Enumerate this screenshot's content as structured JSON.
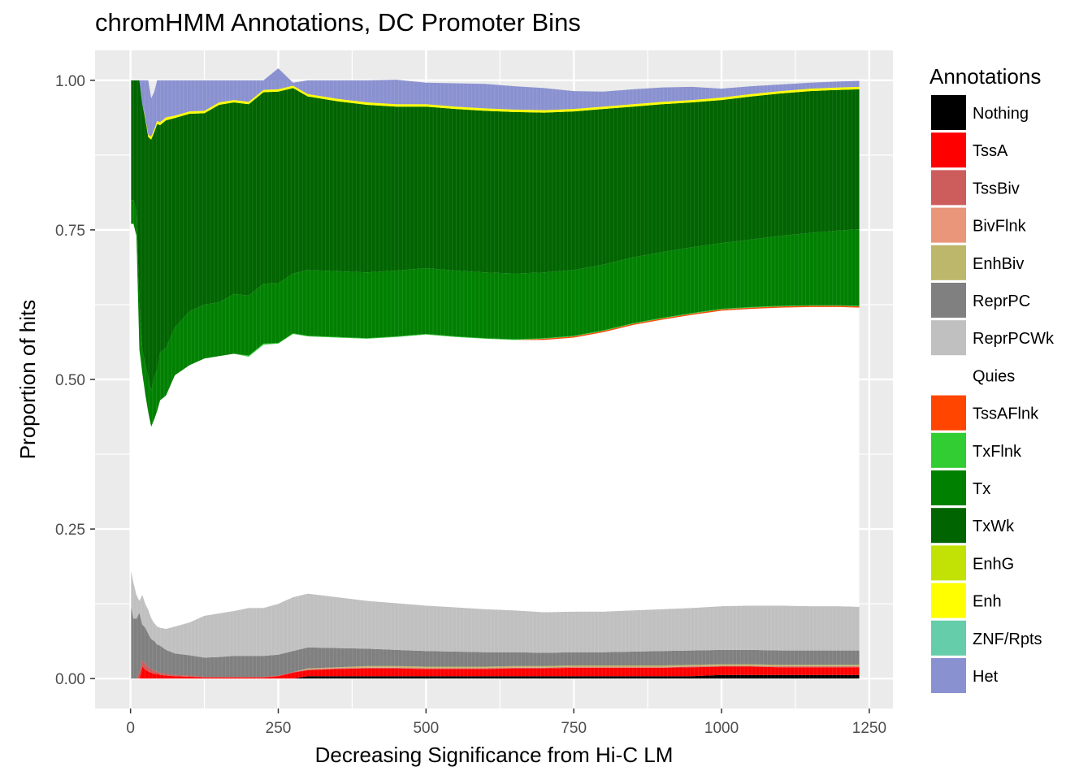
{
  "chart_data": {
    "type": "area",
    "stacked": "proportion",
    "title": "chromHMM Annotations, DC Promoter Bins",
    "xlabel": "Decreasing Significance from Hi-C LM",
    "ylabel": "Proportion of hits",
    "xlim": [
      -60,
      1290
    ],
    "ylim": [
      -0.05,
      1.05
    ],
    "x_ticks": [
      0,
      250,
      500,
      750,
      1000,
      1250
    ],
    "x_tick_labels": [
      "0",
      "250",
      "500",
      "750",
      "1000",
      "1250"
    ],
    "y_ticks": [
      0,
      0.25,
      0.5,
      0.75,
      1
    ],
    "y_tick_labels": [
      "0.00",
      "0.25",
      "0.50",
      "0.75",
      "1.00"
    ],
    "grid": true,
    "legend_position": "right",
    "legend_title": "Annotations",
    "x": [
      1,
      5,
      10,
      15,
      20,
      25,
      30,
      35,
      40,
      45,
      50,
      60,
      75,
      100,
      125,
      150,
      175,
      200,
      225,
      250,
      275,
      300,
      350,
      400,
      450,
      500,
      550,
      600,
      650,
      700,
      750,
      800,
      850,
      900,
      950,
      1000,
      1050,
      1100,
      1150,
      1200,
      1233
    ],
    "series": [
      {
        "name": "Nothing",
        "color": "#000000",
        "values": [
          0,
          0,
          0,
          0,
          0,
          0,
          0,
          0,
          0,
          0,
          0,
          0,
          0,
          0,
          0,
          0,
          0,
          0,
          0,
          0,
          0,
          0.004,
          0.004,
          0.004,
          0.004,
          0.004,
          0.004,
          0.004,
          0.004,
          0.004,
          0.004,
          0.004,
          0.004,
          0.004,
          0.004,
          0.006,
          0.006,
          0.006,
          0.006,
          0.006,
          0.006
        ]
      },
      {
        "name": "TssA",
        "color": "#ff0000",
        "values": [
          0,
          0,
          0,
          0,
          0.02,
          0.015,
          0.012,
          0.01,
          0.008,
          0.008,
          0.006,
          0.005,
          0.004,
          0.003,
          0.002,
          0.002,
          0.002,
          0.002,
          0.002,
          0.004,
          0.01,
          0.01,
          0.012,
          0.013,
          0.013,
          0.012,
          0.012,
          0.012,
          0.013,
          0.013,
          0.014,
          0.014,
          0.014,
          0.014,
          0.015,
          0.014,
          0.014,
          0.013,
          0.013,
          0.013,
          0.013
        ]
      },
      {
        "name": "TssBiv",
        "color": "#cd5c5c",
        "values": [
          0,
          0,
          0,
          0.01,
          0.01,
          0.01,
          0.008,
          0.006,
          0.005,
          0.004,
          0.004,
          0.003,
          0.002,
          0.002,
          0.001,
          0.001,
          0.001,
          0.001,
          0.001,
          0.001,
          0.001,
          0.001,
          0.001,
          0.001,
          0.001,
          0.001,
          0.001,
          0.001,
          0.001,
          0.001,
          0.001,
          0.001,
          0.001,
          0.001,
          0.001,
          0.001,
          0.001,
          0.001,
          0.001,
          0.001,
          0.001
        ]
      },
      {
        "name": "BivFlnk",
        "color": "#e9967a",
        "values": [
          0,
          0,
          0,
          0,
          0,
          0,
          0,
          0,
          0,
          0,
          0,
          0,
          0,
          0,
          0,
          0,
          0,
          0,
          0,
          0,
          0,
          0.001,
          0.001,
          0.001,
          0.001,
          0.001,
          0.001,
          0.001,
          0.001,
          0.001,
          0.001,
          0.001,
          0.001,
          0.001,
          0.001,
          0.001,
          0.001,
          0.001,
          0.001,
          0.001,
          0.001
        ]
      },
      {
        "name": "EnhBiv",
        "color": "#bdb76b",
        "values": [
          0,
          0,
          0,
          0,
          0,
          0,
          0,
          0,
          0,
          0,
          0,
          0,
          0,
          0,
          0,
          0,
          0,
          0,
          0,
          0,
          0,
          0.001,
          0.001,
          0.002,
          0.002,
          0.002,
          0.002,
          0.002,
          0.002,
          0.002,
          0.002,
          0.002,
          0.002,
          0.002,
          0.002,
          0.002,
          0.002,
          0.002,
          0.002,
          0.002,
          0.002
        ]
      },
      {
        "name": "ReprPC",
        "color": "#808080",
        "values": [
          0.12,
          0.1,
          0.1,
          0.1,
          0.06,
          0.06,
          0.055,
          0.05,
          0.05,
          0.045,
          0.045,
          0.04,
          0.036,
          0.034,
          0.032,
          0.033,
          0.035,
          0.035,
          0.035,
          0.035,
          0.035,
          0.035,
          0.032,
          0.029,
          0.027,
          0.026,
          0.025,
          0.024,
          0.023,
          0.022,
          0.022,
          0.022,
          0.023,
          0.024,
          0.024,
          0.024,
          0.024,
          0.024,
          0.024,
          0.024,
          0.024
        ]
      },
      {
        "name": "ReprPCWk",
        "color": "#c0c0c0",
        "values": [
          0.06,
          0.06,
          0.04,
          0.02,
          0.05,
          0.04,
          0.04,
          0.035,
          0.03,
          0.03,
          0.03,
          0.035,
          0.045,
          0.055,
          0.07,
          0.073,
          0.075,
          0.08,
          0.08,
          0.085,
          0.09,
          0.09,
          0.085,
          0.08,
          0.078,
          0.076,
          0.074,
          0.072,
          0.07,
          0.068,
          0.068,
          0.068,
          0.069,
          0.07,
          0.071,
          0.073,
          0.074,
          0.075,
          0.074,
          0.074,
          0.073
        ]
      },
      {
        "name": "Quies",
        "color": "#ffffff",
        "values": [
          0.58,
          0.6,
          0.6,
          0.42,
          0.37,
          0.35,
          0.33,
          0.32,
          0.34,
          0.36,
          0.38,
          0.39,
          0.42,
          0.43,
          0.43,
          0.43,
          0.43,
          0.42,
          0.44,
          0.435,
          0.44,
          0.43,
          0.434,
          0.438,
          0.445,
          0.453,
          0.452,
          0.452,
          0.452,
          0.455,
          0.458,
          0.467,
          0.477,
          0.484,
          0.49,
          0.494,
          0.496,
          0.498,
          0.5,
          0.5,
          0.5
        ]
      },
      {
        "name": "TssAFlnk",
        "color": "#ff4500",
        "values": [
          0,
          0,
          0,
          0,
          0,
          0,
          0,
          0,
          0,
          0,
          0,
          0,
          0,
          0,
          0,
          0,
          0,
          0,
          0,
          0,
          0,
          0,
          0,
          0,
          0,
          0,
          0,
          0,
          0,
          0.002,
          0.002,
          0.002,
          0.002,
          0.002,
          0.002,
          0.002,
          0.002,
          0.002,
          0.002,
          0.002,
          0.002
        ]
      },
      {
        "name": "TxFlnk",
        "color": "#32cd32",
        "values": [
          0,
          0,
          0,
          0,
          0,
          0,
          0,
          0,
          0,
          0,
          0,
          0,
          0,
          0,
          0,
          0,
          0,
          0.002,
          0.002,
          0.001,
          0.001,
          0.001,
          0.001,
          0.001,
          0.001,
          0.001,
          0.001,
          0.001,
          0.001,
          0.001,
          0.001,
          0.001,
          0.001,
          0.001,
          0.001,
          0.001,
          0.001,
          0.001,
          0.001,
          0.001,
          0.001
        ]
      },
      {
        "name": "Tx",
        "color": "#008000",
        "values": [
          0.04,
          0.04,
          0.04,
          0.08,
          0.04,
          0.05,
          0.06,
          0.06,
          0.07,
          0.07,
          0.08,
          0.08,
          0.08,
          0.09,
          0.09,
          0.09,
          0.1,
          0.1,
          0.1,
          0.1,
          0.1,
          0.11,
          0.11,
          0.11,
          0.11,
          0.11,
          0.11,
          0.11,
          0.11,
          0.11,
          0.11,
          0.11,
          0.11,
          0.11,
          0.11,
          0.11,
          0.113,
          0.117,
          0.121,
          0.125,
          0.128
        ]
      },
      {
        "name": "TxWk",
        "color": "#006400",
        "values": [
          0.2,
          0.2,
          0.22,
          0.37,
          0.41,
          0.41,
          0.4,
          0.42,
          0.41,
          0.41,
          0.38,
          0.38,
          0.35,
          0.33,
          0.32,
          0.33,
          0.32,
          0.32,
          0.32,
          0.32,
          0.31,
          0.29,
          0.284,
          0.28,
          0.274,
          0.27,
          0.27,
          0.27,
          0.27,
          0.267,
          0.265,
          0.26,
          0.252,
          0.247,
          0.242,
          0.239,
          0.239,
          0.238,
          0.237,
          0.235,
          0.234
        ]
      },
      {
        "name": "EnhG",
        "color": "#c2e105",
        "values": [
          0,
          0,
          0,
          0,
          0,
          0,
          0,
          0,
          0,
          0,
          0,
          0,
          0,
          0,
          0,
          0,
          0,
          0,
          0,
          0,
          0,
          0,
          0,
          0,
          0,
          0,
          0,
          0,
          0,
          0,
          0,
          0,
          0,
          0,
          0,
          0,
          0,
          0,
          0,
          0,
          0
        ]
      },
      {
        "name": "Enh",
        "color": "#ffff00",
        "values": [
          0,
          0,
          0,
          0,
          0,
          0.003,
          0.004,
          0.005,
          0.005,
          0.005,
          0.005,
          0.005,
          0.004,
          0.004,
          0.004,
          0.004,
          0.004,
          0.004,
          0.004,
          0.004,
          0.004,
          0.004,
          0.004,
          0.004,
          0.004,
          0.004,
          0.004,
          0.004,
          0.004,
          0.004,
          0.004,
          0.004,
          0.004,
          0.004,
          0.004,
          0.004,
          0.004,
          0.004,
          0.004,
          0.004,
          0.004
        ]
      },
      {
        "name": "ZNF/Rpts",
        "color": "#66cdaa",
        "values": [
          0,
          0,
          0,
          0,
          0,
          0,
          0,
          0,
          0,
          0,
          0,
          0,
          0,
          0,
          0,
          0,
          0,
          0,
          0,
          0,
          0,
          0,
          0,
          0,
          0,
          0,
          0,
          0,
          0,
          0,
          0,
          0,
          0,
          0,
          0,
          0,
          0,
          0,
          0,
          0,
          0
        ]
      },
      {
        "name": "Het",
        "color": "#8a91d0",
        "values": [
          0,
          0,
          0,
          0,
          0.04,
          0.062,
          0.091,
          0.064,
          0.062,
          0.068,
          0.07,
          0.062,
          0.059,
          0.052,
          0.051,
          0.037,
          0.033,
          0.036,
          0.016,
          0.035,
          0.005,
          0.023,
          0.031,
          0.037,
          0.041,
          0.036,
          0.039,
          0.041,
          0.039,
          0.037,
          0.03,
          0.025,
          0.025,
          0.024,
          0.022,
          0.015,
          0.013,
          0.011,
          0.01,
          0.01,
          0.01
        ]
      }
    ]
  }
}
